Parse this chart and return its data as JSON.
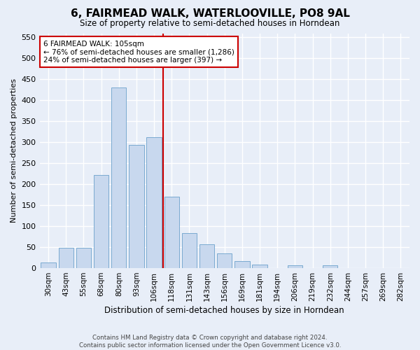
{
  "title": "6, FAIRMEAD WALK, WATERLOOVILLE, PO8 9AL",
  "subtitle": "Size of property relative to semi-detached houses in Horndean",
  "xlabel": "Distribution of semi-detached houses by size in Horndean",
  "ylabel": "Number of semi-detached properties",
  "footer_line1": "Contains HM Land Registry data © Crown copyright and database right 2024.",
  "footer_line2": "Contains public sector information licensed under the Open Government Licence v3.0.",
  "bar_labels": [
    "30sqm",
    "43sqm",
    "55sqm",
    "68sqm",
    "80sqm",
    "93sqm",
    "106sqm",
    "118sqm",
    "131sqm",
    "143sqm",
    "156sqm",
    "169sqm",
    "181sqm",
    "194sqm",
    "206sqm",
    "219sqm",
    "232sqm",
    "244sqm",
    "257sqm",
    "269sqm",
    "282sqm"
  ],
  "bar_values": [
    13,
    49,
    49,
    222,
    430,
    293,
    312,
    170,
    83,
    57,
    35,
    17,
    8,
    0,
    6,
    0,
    6,
    0,
    0,
    0,
    0
  ],
  "bar_color": "#c8d8ee",
  "bar_edge_color": "#7aaad0",
  "vline_color": "#cc0000",
  "annotation_text": "6 FAIRMEAD WALK: 105sqm\n← 76% of semi-detached houses are smaller (1,286)\n24% of semi-detached houses are larger (397) →",
  "annotation_box_color": "white",
  "annotation_box_edge_color": "#cc0000",
  "ylim": [
    0,
    560
  ],
  "yticks": [
    0,
    50,
    100,
    150,
    200,
    250,
    300,
    350,
    400,
    450,
    500,
    550
  ],
  "bg_color": "#e8eef8",
  "plot_bg_color": "#e8eef8",
  "grid_color": "white",
  "title_fontsize": 11,
  "subtitle_fontsize": 9
}
